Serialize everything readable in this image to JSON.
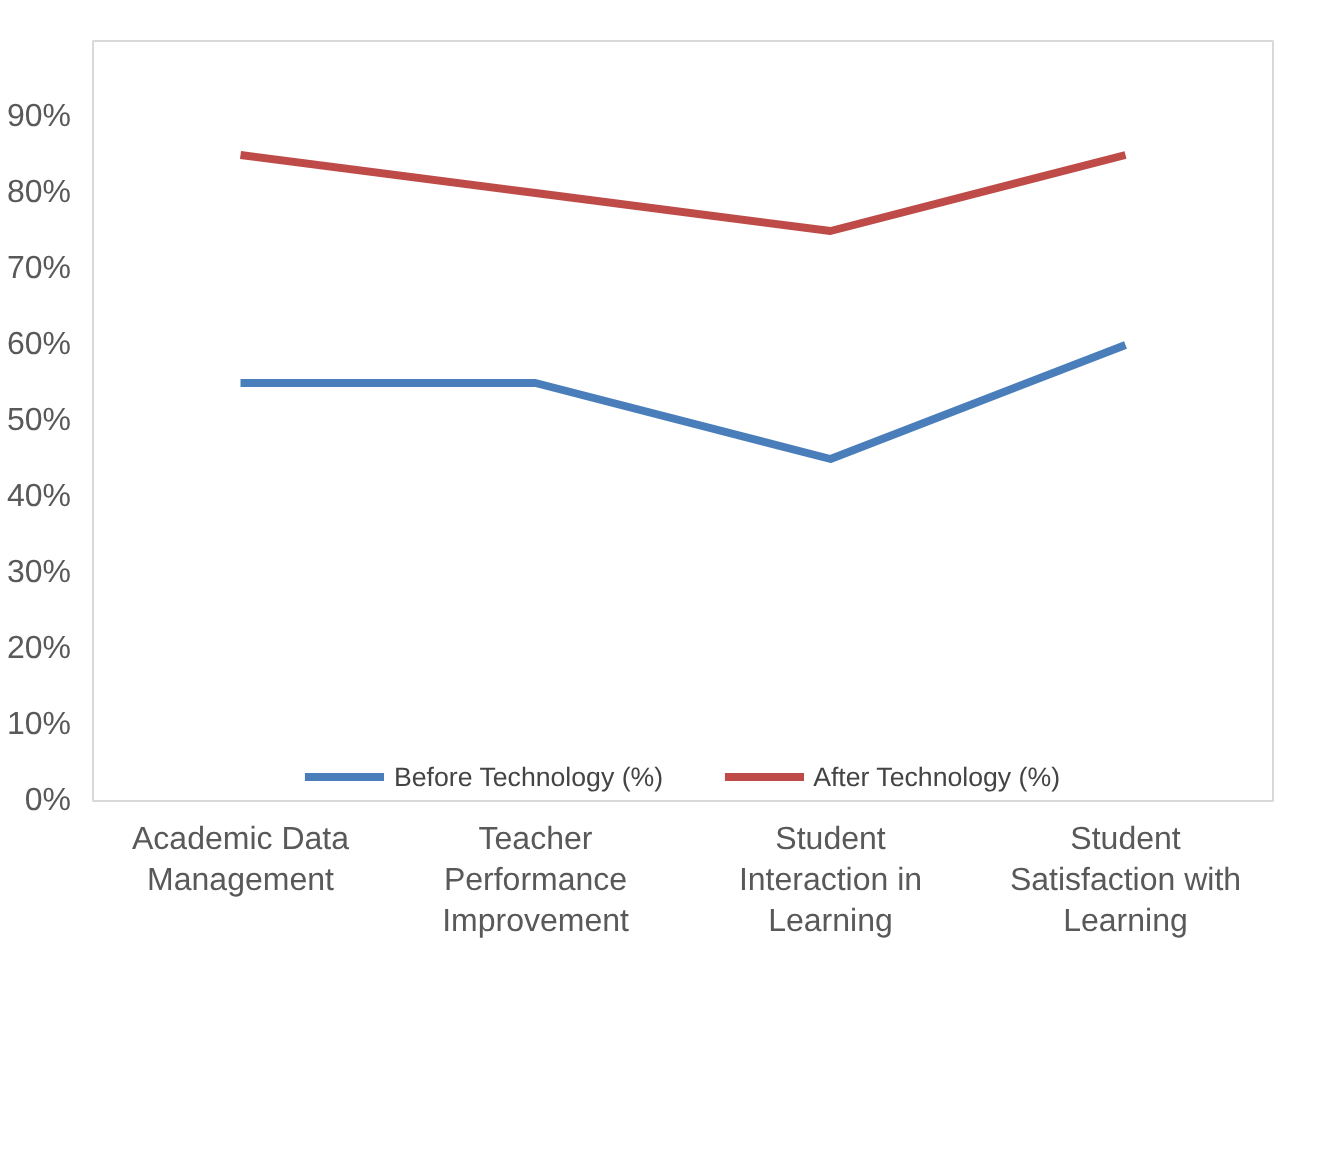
{
  "chart_data": {
    "type": "line",
    "categories": [
      "Academic Data Management",
      "Teacher Performance Improvement",
      "Student Interaction in Learning",
      "Student Satisfaction with Learning"
    ],
    "series": [
      {
        "name": "Before Technology (%)",
        "color": "#4a7ebb",
        "values": [
          55,
          55,
          45,
          60
        ]
      },
      {
        "name": "After Technology (%)",
        "color": "#be4b48",
        "values": [
          85,
          80,
          75,
          85
        ]
      }
    ],
    "ylim": [
      0,
      100
    ],
    "yticks": [
      {
        "value": 0,
        "label": "0%"
      },
      {
        "value": 10,
        "label": "10%"
      },
      {
        "value": 20,
        "label": "20%"
      },
      {
        "value": 30,
        "label": "30%"
      },
      {
        "value": 40,
        "label": "40%"
      },
      {
        "value": 50,
        "label": "50%"
      },
      {
        "value": 60,
        "label": "60%"
      },
      {
        "value": 70,
        "label": "70%"
      },
      {
        "value": 80,
        "label": "80%"
      },
      {
        "value": 90,
        "label": "90%"
      }
    ],
    "grid": false,
    "legend": "bottom",
    "marker": "none",
    "line_style": "solid"
  }
}
